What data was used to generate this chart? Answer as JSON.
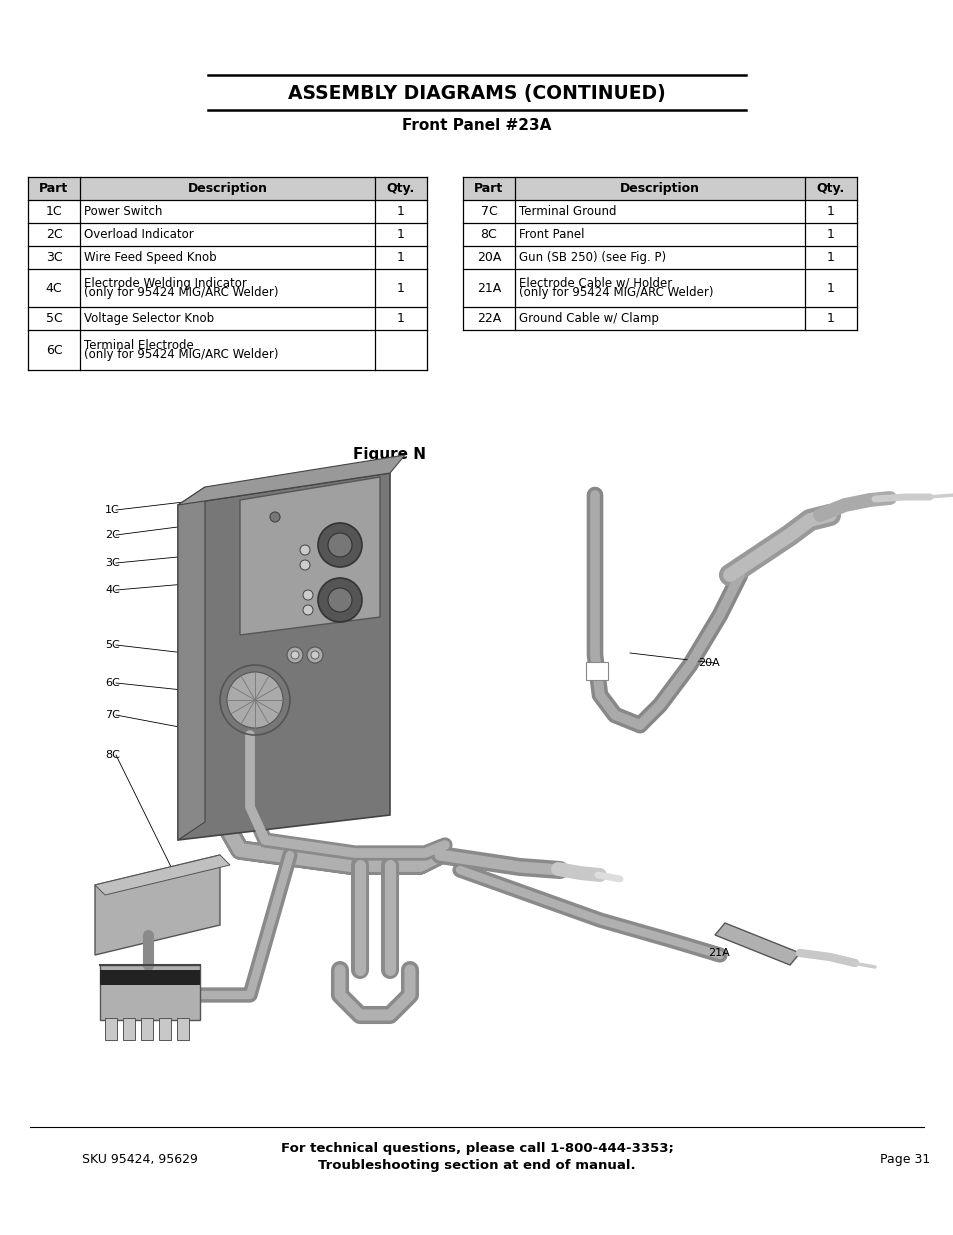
{
  "title": "ASSEMBLY DIAGRAMS (CONTINUED)",
  "subtitle": "Front Panel #23A",
  "figure_label": "Figure N",
  "left_table": {
    "headers": [
      "Part",
      "Description",
      "Qty."
    ],
    "rows": [
      [
        "1C",
        "Power Switch",
        "1"
      ],
      [
        "2C",
        "Overload Indicator",
        "1"
      ],
      [
        "3C",
        "Wire Feed Speed Knob",
        "1"
      ],
      [
        "4C",
        "Electrode Welding Indicator\n(only for 95424 MIG/ARC Welder)",
        "1"
      ],
      [
        "5C",
        "Voltage Selector Knob",
        "1"
      ],
      [
        "6C",
        "Terminal Electrode\n(only for 95424 MIG/ARC Welder)",
        ""
      ]
    ]
  },
  "right_table": {
    "headers": [
      "Part",
      "Description",
      "Qty."
    ],
    "rows": [
      [
        "7C",
        "Terminal Ground",
        "1"
      ],
      [
        "8C",
        "Front Panel",
        "1"
      ],
      [
        "20A",
        "Gun (SB 250) (see Fig. P)",
        "1"
      ],
      [
        "21A",
        "Electrode Cable w/ Holder\n(only for 95424 MIG/ARC Welder)",
        "1"
      ],
      [
        "22A",
        "Ground Cable w/ Clamp",
        "1"
      ]
    ]
  },
  "footer_left": "SKU 95424, 95629",
  "footer_center": "For technical questions, please call 1-800-444-3353;\nTroubleshooting section at end of manual.",
  "footer_right": "Page 31",
  "bg_color": "#ffffff",
  "text_color": "#000000"
}
